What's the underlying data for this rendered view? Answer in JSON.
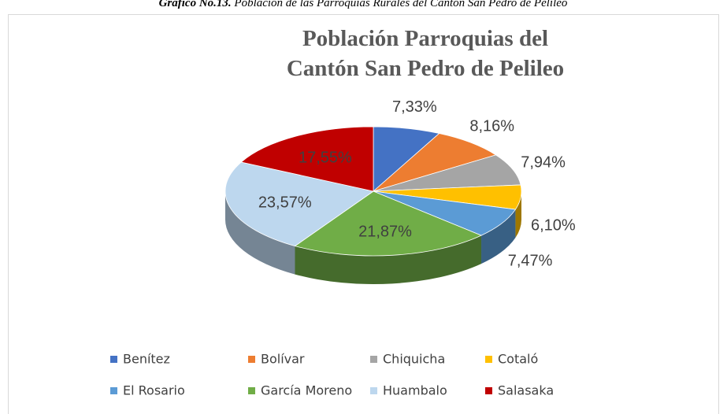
{
  "caption": {
    "label": "Gráfico No.13.",
    "text": "Población de las Parroquias Rurales del Cantón San Pedro de Pelileo"
  },
  "chart_data": {
    "type": "pie3d",
    "title": [
      "Población Parroquias del",
      "Cantón San Pedro de Pelileo"
    ],
    "categories": [
      "Benítez",
      "Bolívar",
      "Chiquicha",
      "Cotaló",
      "El Rosario",
      "García Moreno",
      "Huambalo",
      "Salasaka"
    ],
    "values": [
      7.33,
      8.16,
      7.94,
      6.1,
      7.47,
      21.87,
      23.57,
      17.55
    ],
    "value_labels": [
      "7,33%",
      "8,16%",
      "7,94%",
      "6,10%",
      "7,47%",
      "21,87%",
      "23,57%",
      "17,55%"
    ],
    "colors": [
      "#4472c4",
      "#ed7d31",
      "#a5a5a5",
      "#ffc000",
      "#5b9bd5",
      "#70ad47",
      "#bdd7ee",
      "#c00000"
    ],
    "legend": "bottom"
  }
}
